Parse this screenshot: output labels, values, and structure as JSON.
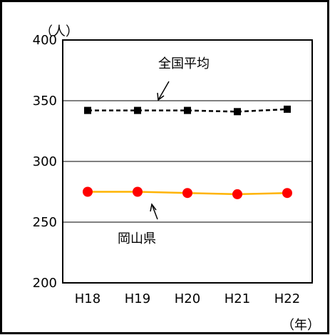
{
  "chart_data": {
    "type": "line",
    "categories": [
      "H18",
      "H19",
      "H20",
      "H21",
      "H22"
    ],
    "series": [
      {
        "name": "全国平均",
        "values": [
          342,
          342,
          342,
          341,
          343
        ],
        "color": "#000000",
        "line_style": "dashed",
        "marker": "square"
      },
      {
        "name": "岡山県",
        "values": [
          275,
          275,
          274,
          273,
          274
        ],
        "color": "#ffb300",
        "marker_color": "#ff0000",
        "line_style": "solid",
        "marker": "circle"
      }
    ],
    "ylim": [
      200,
      400
    ],
    "yticks": [
      200,
      250,
      300,
      350,
      400
    ],
    "yunit": "（人）",
    "xunit": "（年）",
    "grid": true,
    "legend": "inline labels with arrows"
  }
}
